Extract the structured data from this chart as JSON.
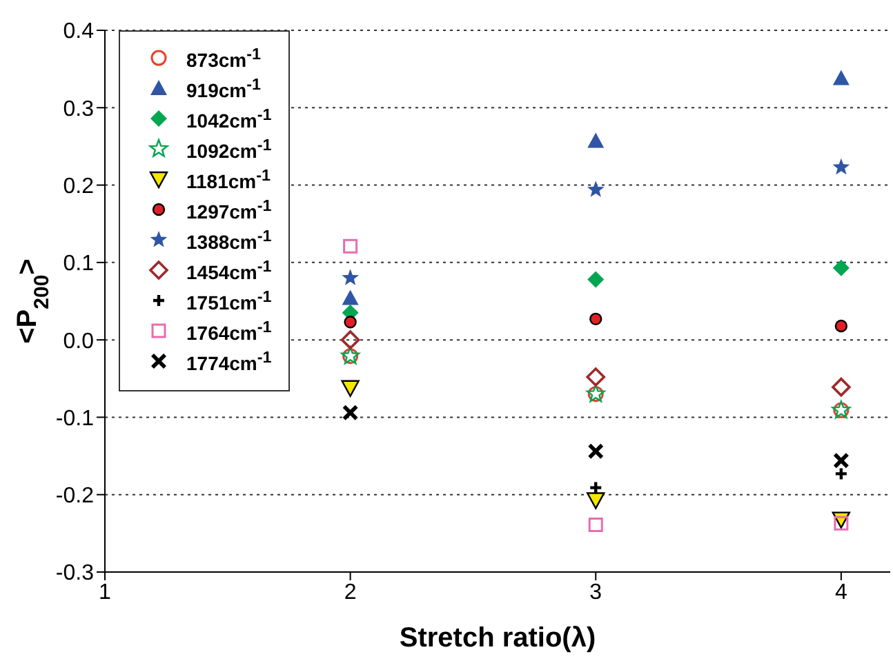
{
  "chart_data": {
    "type": "scatter",
    "xlabel": "Stretch ratio(λ)",
    "ylabel": "<P$_{200}$>",
    "x": [
      2,
      3,
      4
    ],
    "xlim": [
      1,
      4.2
    ],
    "xticks": [
      1,
      2,
      3,
      4
    ],
    "ylim": [
      -0.3,
      0.4
    ],
    "yticks": [
      {
        "value": -0.3,
        "label": "-0.3"
      },
      {
        "value": -0.2,
        "label": "-0.2"
      },
      {
        "value": -0.1,
        "label": "-0.1"
      },
      {
        "value": 0,
        "label": "0.0"
      },
      {
        "value": 0.1,
        "label": "0.1"
      },
      {
        "value": 0.2,
        "label": "0.2"
      },
      {
        "value": 0.3,
        "label": "0.3"
      },
      {
        "value": 0.4,
        "label": "0.4"
      }
    ],
    "grid": "y",
    "legend": "top left",
    "series": [
      {
        "name": "873cm$^{-1}$",
        "color": "#e8412c",
        "marker": "circle-open",
        "values": [
          -0.021,
          -0.07,
          -0.091
        ]
      },
      {
        "name": "919cm$^{-1}$",
        "color": "#2f55a4",
        "marker": "triangle",
        "values": [
          0.054,
          0.257,
          0.338
        ]
      },
      {
        "name": "1042cm$^{-1}$",
        "color": "#00a651",
        "marker": "diamond",
        "values": [
          0.035,
          0.078,
          0.093
        ]
      },
      {
        "name": "1092cm$^{-1}$",
        "color": "#00a651",
        "marker": "star-open",
        "values": [
          -0.021,
          -0.07,
          -0.091
        ]
      },
      {
        "name": "1181cm$^{-1}$",
        "color": "#f5e600",
        "marker": "triangle-down",
        "values": [
          -0.062,
          -0.207,
          -0.232
        ]
      },
      {
        "name": "1297cm$^{-1}$",
        "color": "#e31e24",
        "marker": "circle",
        "values": [
          0.023,
          0.027,
          0.018
        ]
      },
      {
        "name": "1388cm$^{-1}$",
        "color": "#2f55a4",
        "marker": "star",
        "values": [
          0.08,
          0.194,
          0.223
        ]
      },
      {
        "name": "1454cm$^{-1}$",
        "color": "#9e2a2b",
        "marker": "diamond-open",
        "values": [
          0,
          -0.048,
          -0.061
        ]
      },
      {
        "name": "1751cm$^{-1}$",
        "color": "#000000",
        "marker": "plus",
        "values": [
          null,
          -0.191,
          -0.173
        ]
      },
      {
        "name": "1764cm$^{-1}$",
        "color": "#e86bb0",
        "marker": "square-open",
        "values": [
          0.121,
          -0.239,
          -0.237
        ]
      },
      {
        "name": "1774cm$^{-1}$",
        "color": "#000000",
        "marker": "cross",
        "values": [
          -0.094,
          -0.144,
          -0.156
        ]
      }
    ]
  }
}
